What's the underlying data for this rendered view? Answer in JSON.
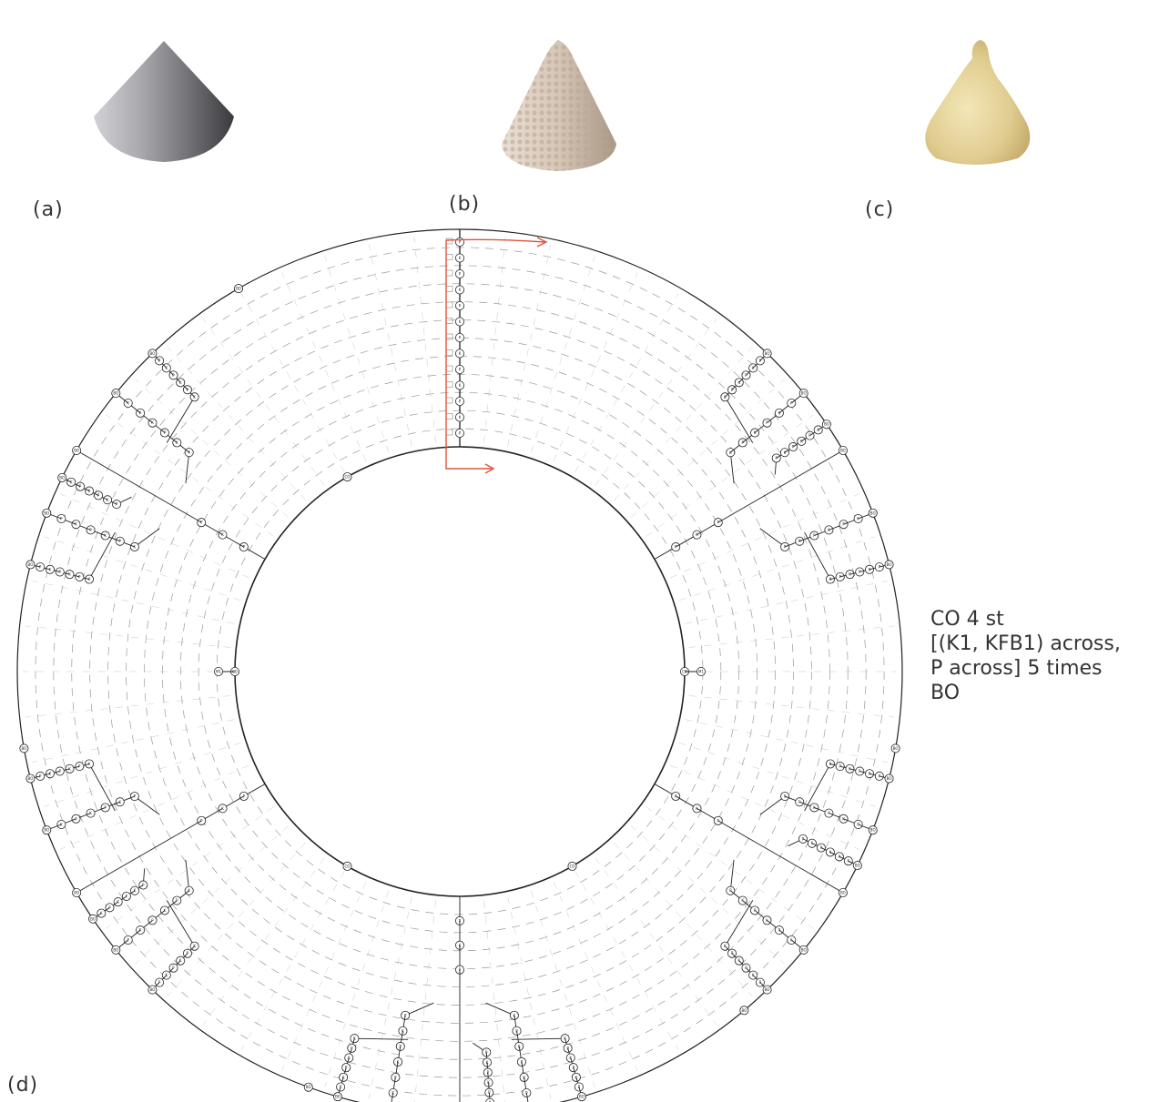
{
  "panels": {
    "a": "(a)",
    "b": "(b)",
    "c": "(c)",
    "d": "(d)"
  },
  "images": {
    "a": {
      "icon": "cone-model-icon",
      "fill": "#8b8b8f"
    },
    "b": {
      "icon": "knitted-cone-icon",
      "fill": "#d9cbbd"
    },
    "c": {
      "icon": "felted-cone-icon",
      "fill": "#e2cf95"
    }
  },
  "instructions": {
    "line1": "CO 4 st",
    "line2": "[(K1, KFB1) across,",
    "line3": "P across] 5 times",
    "line4": "BO"
  },
  "diagram": {
    "stitch_codes": [
      "K",
      "P",
      "M1",
      "BO",
      "CO"
    ],
    "arrow_color": "#e0533a",
    "line_color": "#222222",
    "guide_color": "#9a9a9a"
  }
}
